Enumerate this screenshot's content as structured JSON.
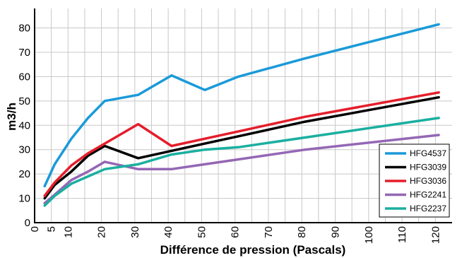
{
  "chart_data": {
    "type": "line",
    "title": "",
    "xlabel": "Différence de pression (Pascals)",
    "ylabel": "m3/h",
    "xlim": [
      0,
      125
    ],
    "ylim": [
      0,
      88
    ],
    "grid": true,
    "legend_position": "bottom-right",
    "x_ticks": [
      0,
      5,
      10,
      15,
      20,
      25,
      30,
      35,
      40,
      45,
      50,
      55,
      60,
      65,
      70,
      75,
      80,
      85,
      90,
      95,
      100,
      105,
      110,
      115,
      120
    ],
    "x_tick_labels": [
      "0",
      "5",
      "10",
      "20",
      "30",
      "40",
      "50",
      "60",
      "70",
      "80",
      "90",
      "100",
      "110",
      "120"
    ],
    "x_tick_label_values": [
      0,
      5,
      10,
      20,
      30,
      40,
      50,
      60,
      70,
      80,
      90,
      100,
      110,
      120
    ],
    "y_ticks": [
      0,
      10,
      20,
      30,
      40,
      50,
      60,
      70,
      80
    ],
    "series": [
      {
        "name": "HFG4537",
        "color": "#1a9ad9",
        "x": [
          3,
          6,
          11,
          16,
          21,
          31,
          41,
          51,
          61,
          81,
          121
        ],
        "y": [
          15,
          24,
          34.5,
          43,
          50,
          52.5,
          60.5,
          54.5,
          60,
          67.5,
          81.5
        ]
      },
      {
        "name": "HFG3039",
        "color": "#000000",
        "x": [
          3,
          6,
          11,
          16,
          21,
          31,
          41,
          51,
          61,
          81,
          121
        ],
        "y": [
          10,
          15.5,
          21,
          27.5,
          31.5,
          26.5,
          29.5,
          32.5,
          35.5,
          41.5,
          51.5
        ]
      },
      {
        "name": "HFG3036",
        "color": "#e41e2b",
        "x": [
          3,
          6,
          11,
          16,
          21,
          31,
          41,
          51,
          61,
          81,
          121
        ],
        "y": [
          11,
          16.5,
          23.5,
          28.5,
          32.5,
          40.5,
          31.5,
          34.5,
          37.5,
          43.5,
          53.5
        ]
      },
      {
        "name": "HFG2241",
        "color": "#9467b5",
        "x": [
          3,
          6,
          11,
          16,
          21,
          31,
          41,
          51,
          61,
          81,
          121
        ],
        "y": [
          8,
          11.5,
          17.5,
          21,
          25,
          22,
          22,
          24,
          26,
          30,
          36
        ]
      },
      {
        "name": "HFG2237",
        "color": "#1aafa0",
        "x": [
          3,
          6,
          11,
          16,
          21,
          31,
          41,
          51,
          61,
          81,
          121
        ],
        "y": [
          7,
          11,
          16,
          19,
          22,
          24,
          28,
          30,
          31,
          35,
          43
        ]
      }
    ]
  }
}
